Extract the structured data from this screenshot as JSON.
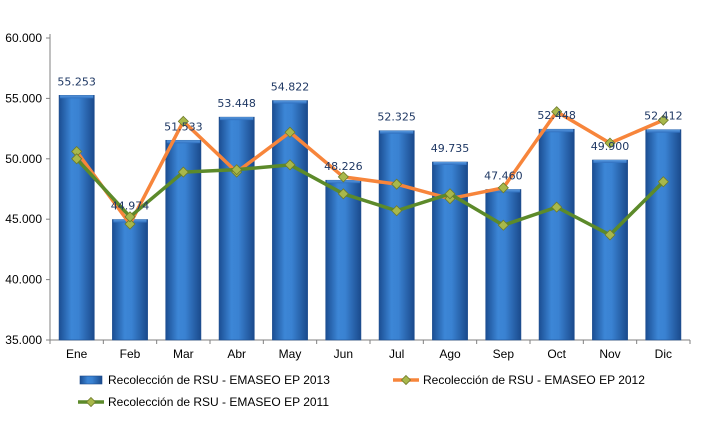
{
  "chart_data": {
    "type": "bar",
    "categories": [
      "Ene",
      "Feb",
      "Mar",
      "Abr",
      "May",
      "Jun",
      "Jul",
      "Ago",
      "Sep",
      "Oct",
      "Nov",
      "Dic"
    ],
    "ylim": [
      35000,
      60000
    ],
    "y_ticks": [
      35000,
      40000,
      45000,
      50000,
      55000,
      60000
    ],
    "y_tick_labels": [
      "35.000",
      "40.000",
      "45.000",
      "50.000",
      "55.000",
      "60.000"
    ],
    "grid": false,
    "legend_position": "bottom",
    "series": [
      {
        "name": "Recolección de RSU - EMASEO EP 2013",
        "type": "bar",
        "color": "#2E75C8",
        "values": [
          55253,
          44974,
          51533,
          53448,
          54822,
          48226,
          52325,
          49735,
          47460,
          52448,
          49900,
          52412
        ],
        "data_labels": [
          "55.253",
          "44.974",
          "51.533",
          "53.448",
          "54.822",
          "48.226",
          "52.325",
          "49.735",
          "47.460",
          "52.448",
          "49.900",
          "52.412"
        ]
      },
      {
        "name": "Recolección de RSU - EMASEO EP 2012",
        "type": "line",
        "color": "#F7853B",
        "marker_color": "#A8B84B",
        "values": [
          50600,
          44600,
          53100,
          48900,
          52200,
          48500,
          47900,
          46700,
          47600,
          53900,
          51300,
          53200
        ]
      },
      {
        "name": "Recolección de RSU - EMASEO EP 2011",
        "type": "line",
        "color": "#5C8A2A",
        "marker_color": "#A8B84B",
        "values": [
          50000,
          45200,
          48900,
          49100,
          49500,
          47100,
          45700,
          47100,
          44500,
          46000,
          43700,
          48100
        ]
      }
    ]
  }
}
